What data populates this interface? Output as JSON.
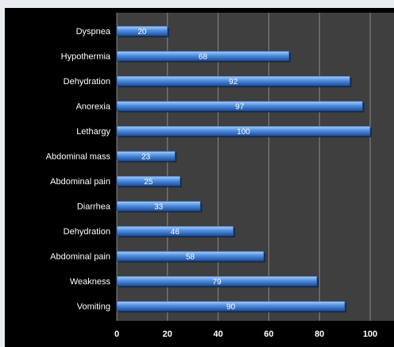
{
  "chart_data": {
    "type": "bar",
    "orientation": "horizontal",
    "title": "",
    "xlabel": "",
    "ylabel": "",
    "categories": [
      "Dyspnea",
      "Hypothermia",
      "Dehydration",
      "Anorexia",
      "Lethargy",
      "Abdominal mass",
      "Abdominal pain",
      "Diarrhea",
      "Dehydration",
      "Abdominal pain",
      "Weakness",
      "Vomiting"
    ],
    "values": [
      20,
      68,
      92,
      97,
      100,
      23,
      25,
      33,
      46,
      58,
      79,
      90
    ],
    "xlim": [
      0,
      100
    ],
    "xticks": [
      0,
      20,
      40,
      60,
      80,
      100
    ],
    "xtick_labels": [
      "0",
      "20",
      "40",
      "60",
      "80",
      "100"
    ],
    "grid": true,
    "legend": "none",
    "colors": {
      "bar": "#4f8fe0",
      "bar_highlight": "#a9cdf7",
      "bar_shadow": "#1f4f99",
      "plot_background": "#3f3f3f",
      "frame_background": "#000000",
      "gridline": "#8a8a8a",
      "text": "#ffffff"
    }
  }
}
